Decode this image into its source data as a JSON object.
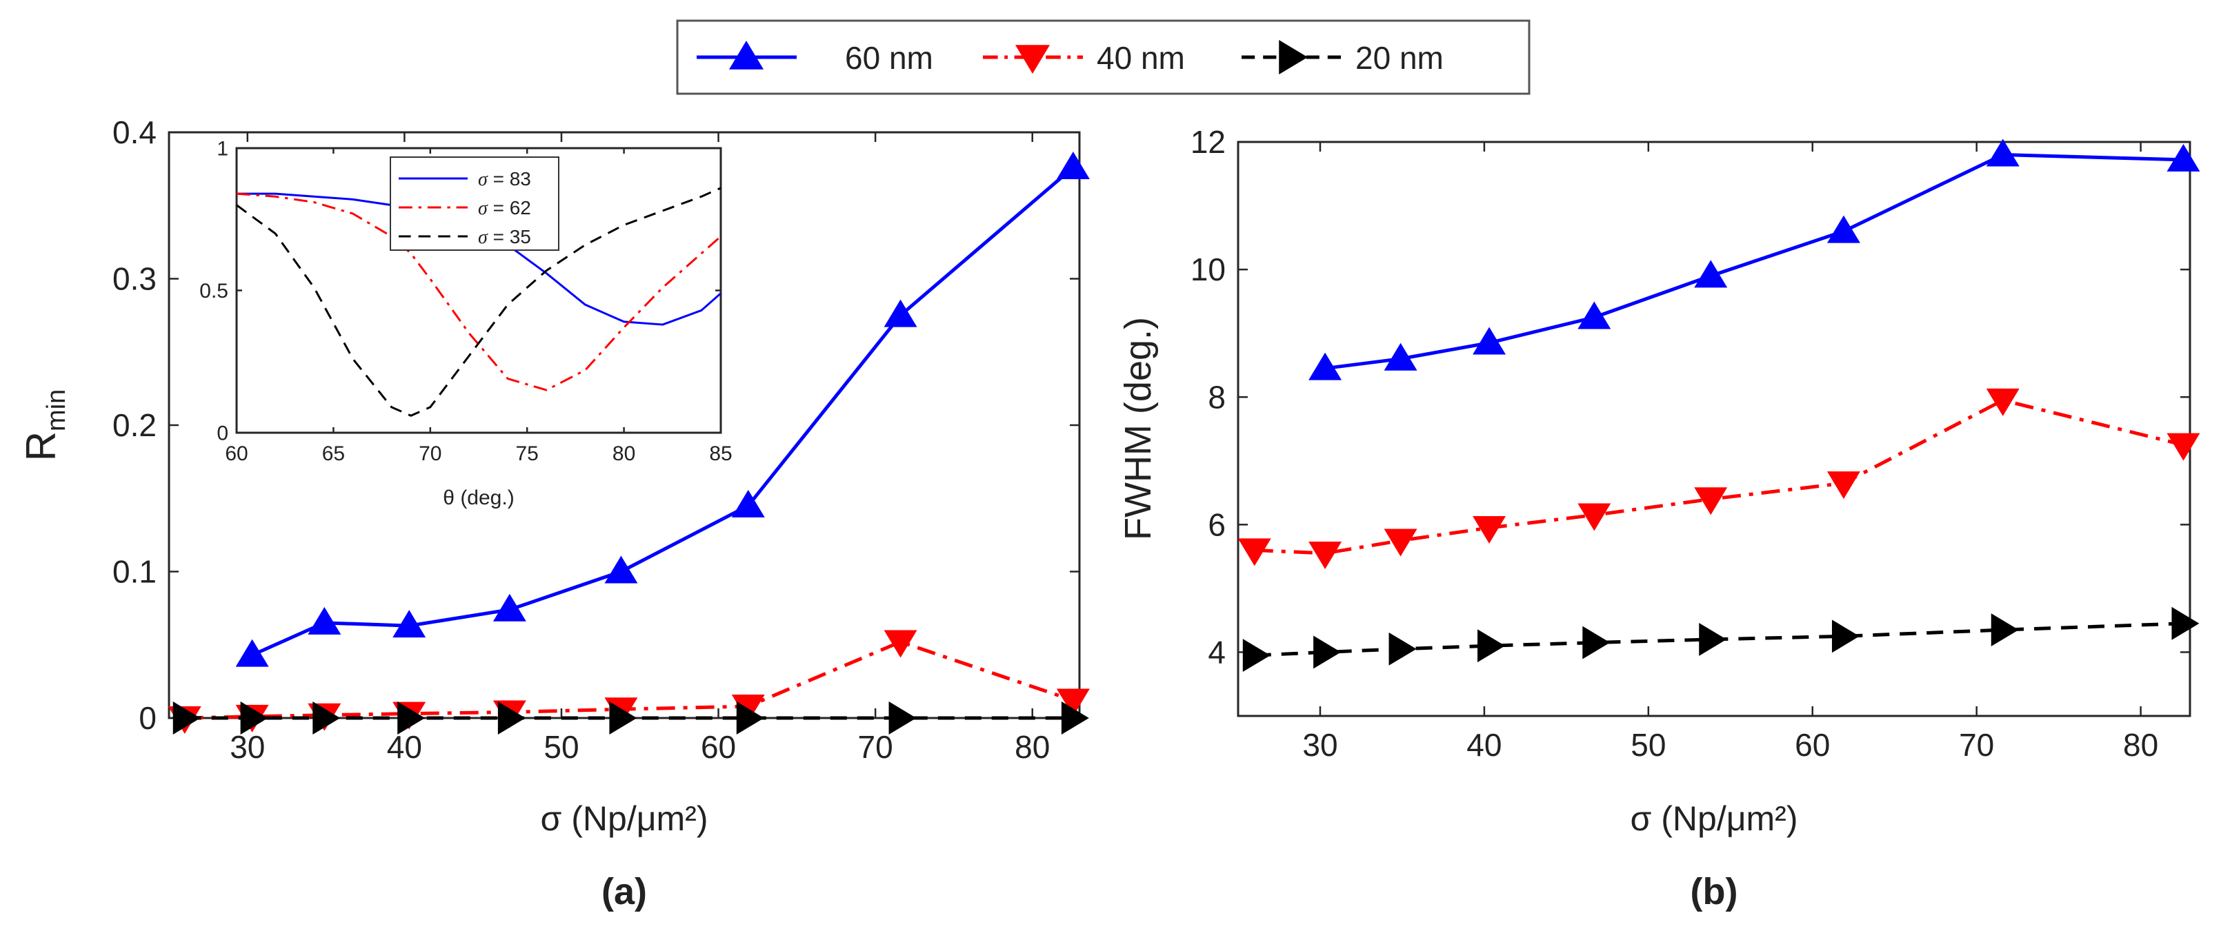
{
  "legend": {
    "entries": [
      {
        "label": "60 nm",
        "color": "#0000ff",
        "marker": "triangle-up",
        "dash": "solid"
      },
      {
        "label": "40 nm",
        "color": "#ff0000",
        "marker": "triangle-down",
        "dash": "dashdot"
      },
      {
        "label": "20 nm",
        "color": "#000000",
        "marker": "triangle-right",
        "dash": "dashed"
      }
    ]
  },
  "chart_data": [
    {
      "id": "a",
      "type": "line",
      "panel_label": "a",
      "xlabel": "σ (Np/μm²)",
      "ylabel": "R",
      "ylabel_sub": "min",
      "xlim": [
        25,
        83
      ],
      "ylim": [
        0,
        0.4
      ],
      "xticks": [
        30,
        40,
        50,
        60,
        70,
        80
      ],
      "yticks": [
        0,
        0.1,
        0.2,
        0.3,
        0.4
      ],
      "ytick_labels": [
        "0",
        "0.1",
        "0.2",
        "0.3",
        "0.4"
      ],
      "x": [
        26,
        30.3,
        34.9,
        40.3,
        46.7,
        53.8,
        61.9,
        71.6,
        82.6
      ],
      "series": [
        {
          "name": "60 nm",
          "color": "#0000ff",
          "marker": "triangle-up",
          "dash": "solid",
          "start": 1,
          "values": [
            null,
            0.043,
            0.065,
            0.063,
            0.074,
            0.1,
            0.145,
            0.275,
            0.376
          ]
        },
        {
          "name": "40 nm",
          "color": "#ff0000",
          "marker": "triangle-down",
          "dash": "dashdot",
          "start": 0,
          "values": [
            0.0,
            0.001,
            0.002,
            0.003,
            0.004,
            0.006,
            0.008,
            0.052,
            0.012
          ]
        },
        {
          "name": "20 nm",
          "color": "#000000",
          "marker": "triangle-right",
          "dash": "dashed",
          "start": 0,
          "values": [
            0.0,
            0.0,
            0.0,
            0.0,
            0.0,
            0.0,
            0.0,
            0.0,
            0.0
          ]
        }
      ],
      "inset": {
        "type": "line",
        "xlabel": "θ (deg.)",
        "xlim": [
          60,
          85
        ],
        "ylim": [
          0,
          1
        ],
        "xticks": [
          60,
          65,
          70,
          75,
          80,
          85
        ],
        "yticks": [
          0,
          0.5,
          1
        ],
        "ytick_labels": [
          "0",
          "0.5",
          "1"
        ],
        "legend_location": "top-center",
        "x": [
          60,
          62,
          64,
          66,
          68,
          69,
          70,
          72,
          74,
          76,
          78,
          80,
          82,
          84,
          85
        ],
        "series": [
          {
            "name": "σ = 83",
            "color": "#0000ff",
            "dash": "solid",
            "values": [
              0.84,
              0.84,
              0.83,
              0.82,
              0.8,
              0.79,
              0.77,
              0.73,
              0.66,
              0.56,
              0.45,
              0.39,
              0.38,
              0.43,
              0.49
            ]
          },
          {
            "name": "σ = 62",
            "color": "#ff0000",
            "dash": "dashdot",
            "values": [
              0.84,
              0.83,
              0.81,
              0.77,
              0.69,
              0.63,
              0.54,
              0.35,
              0.19,
              0.15,
              0.22,
              0.37,
              0.51,
              0.63,
              0.69
            ]
          },
          {
            "name": "σ = 35",
            "color": "#000000",
            "dash": "dashed",
            "values": [
              0.8,
              0.7,
              0.51,
              0.26,
              0.09,
              0.06,
              0.09,
              0.27,
              0.45,
              0.57,
              0.66,
              0.73,
              0.78,
              0.83,
              0.86
            ]
          }
        ],
        "legend_entries": [
          {
            "symbol": "σ",
            "text": " = 83"
          },
          {
            "symbol": "σ",
            "text": " = 62"
          },
          {
            "symbol": "σ",
            "text": " = 35"
          }
        ]
      }
    },
    {
      "id": "b",
      "type": "line",
      "panel_label": "b",
      "xlabel": "σ (Np/μm²)",
      "ylabel": "FWHM (deg.)",
      "xlim": [
        25,
        83
      ],
      "ylim": [
        3,
        12
      ],
      "xticks": [
        30,
        40,
        50,
        60,
        70,
        80
      ],
      "yticks": [
        4,
        6,
        8,
        10,
        12
      ],
      "ytick_labels": [
        "4",
        "6",
        "8",
        "10",
        "12"
      ],
      "x": [
        26,
        30.3,
        34.9,
        40.3,
        46.7,
        53.8,
        61.9,
        71.6,
        82.6
      ],
      "series": [
        {
          "name": "60 nm",
          "color": "#0000ff",
          "marker": "triangle-up",
          "dash": "solid",
          "start": 1,
          "values": [
            null,
            8.45,
            8.6,
            8.85,
            9.25,
            9.9,
            10.6,
            11.8,
            11.72
          ]
        },
        {
          "name": "40 nm",
          "color": "#ff0000",
          "marker": "triangle-down",
          "dash": "dashdot",
          "start": 0,
          "values": [
            5.6,
            5.55,
            5.75,
            5.95,
            6.15,
            6.4,
            6.65,
            7.95,
            7.25
          ]
        },
        {
          "name": "20 nm",
          "color": "#000000",
          "marker": "triangle-right",
          "dash": "dashed",
          "start": 0,
          "values": [
            3.95,
            4.0,
            4.05,
            4.1,
            4.15,
            4.2,
            4.25,
            4.35,
            4.45
          ]
        }
      ]
    }
  ]
}
